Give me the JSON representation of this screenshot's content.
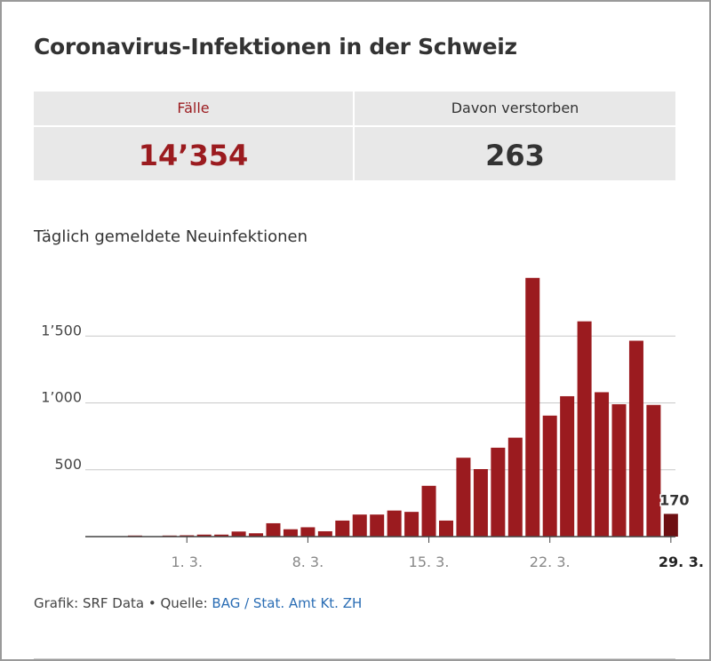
{
  "title": "Coronavirus-Infektionen in der Schweiz",
  "stats": {
    "cases_label": "Fälle",
    "cases_value": "14’354",
    "deaths_label": "Davon verstorben",
    "deaths_value": "263"
  },
  "chart_title": "Täglich gemeldete Neuinfektionen",
  "colors": {
    "bar": "#9b1b1f",
    "bar_highlight": "#6e0f12",
    "accent": "#9b1b1f"
  },
  "chart_data": {
    "type": "bar",
    "title": "Täglich gemeldete Neuinfektionen",
    "xlabel": "",
    "ylabel": "",
    "ylim": [
      0,
      2000
    ],
    "yticks": [
      500,
      1000,
      1500
    ],
    "ytick_labels": [
      "500",
      "1’000",
      "1’500"
    ],
    "xtick_labels": [
      "1. 3.",
      "8. 3.",
      "15. 3.",
      "22. 3.",
      "29. 3."
    ],
    "values": [
      2,
      1,
      8,
      2,
      8,
      10,
      15,
      15,
      38,
      25,
      100,
      55,
      70,
      40,
      120,
      165,
      165,
      195,
      185,
      380,
      120,
      590,
      505,
      665,
      740,
      1935,
      905,
      1050,
      1610,
      1080,
      990,
      1465,
      985,
      170
    ],
    "highlight_label": "170",
    "grid": true
  },
  "footer": {
    "prefix": "Grafik: SRF Data • Quelle: ",
    "source": "BAG / Stat. Amt Kt. ZH"
  }
}
